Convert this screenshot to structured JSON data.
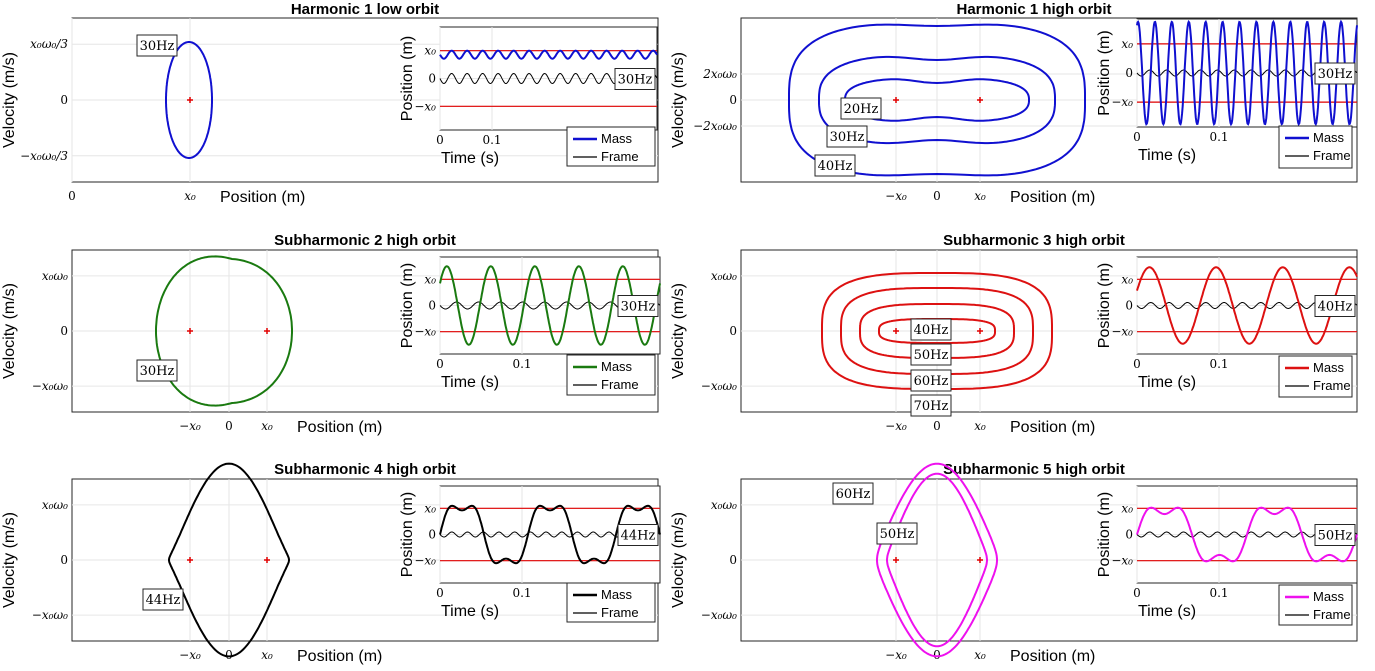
{
  "chart_data": [
    {
      "type": "line",
      "title": "Harmonic 1 low orbit",
      "phase": {
        "xlabel": "Position (m)",
        "ylabel": "Velocity (m/s)",
        "xticks": [
          "0",
          "x₀"
        ],
        "yticks": [
          "x₀ω₀/3",
          "0",
          "−x₀ω₀/3"
        ],
        "orbits": [
          {
            "label": "30Hz",
            "color": "#1010d0"
          }
        ]
      },
      "timeseries": {
        "xlabel": "Time (s)",
        "ylabel": "Position (m)",
        "xticks": [
          "0",
          "0.1"
        ],
        "yticks": [
          "x₀",
          "0",
          "−x₀"
        ],
        "freq_label": "30Hz",
        "series": [
          {
            "name": "Mass",
            "color": "#1010d0"
          },
          {
            "name": "Frame",
            "color": "#000000"
          }
        ]
      }
    },
    {
      "type": "line",
      "title": "Harmonic 1 high orbit",
      "phase": {
        "xlabel": "Position (m)",
        "ylabel": "Velocity (m/s)",
        "xticks": [
          "−x₀",
          "0",
          "x₀"
        ],
        "yticks": [
          "2x₀ω₀",
          "0",
          "−2x₀ω₀"
        ],
        "orbits": [
          {
            "label": "20Hz",
            "color": "#1010d0"
          },
          {
            "label": "30Hz",
            "color": "#1010d0"
          },
          {
            "label": "40Hz",
            "color": "#1010d0"
          }
        ]
      },
      "timeseries": {
        "xlabel": "Time (s)",
        "ylabel": "Position (m)",
        "xticks": [
          "0",
          "0.1"
        ],
        "yticks": [
          "x₀",
          "0",
          "−x₀"
        ],
        "freq_label": "30Hz",
        "series": [
          {
            "name": "Mass",
            "color": "#1010d0"
          },
          {
            "name": "Frame",
            "color": "#000000"
          }
        ]
      }
    },
    {
      "type": "line",
      "title": "Subharmonic 2 high orbit",
      "phase": {
        "xlabel": "Position (m)",
        "ylabel": "Velocity (m/s)",
        "xticks": [
          "−x₀",
          "0",
          "x₀"
        ],
        "yticks": [
          "x₀ω₀",
          "0",
          "−x₀ω₀"
        ],
        "orbits": [
          {
            "label": "30Hz",
            "color": "#1a7a10"
          }
        ]
      },
      "timeseries": {
        "xlabel": "Time (s)",
        "ylabel": "Position (m)",
        "xticks": [
          "0",
          "0.1"
        ],
        "yticks": [
          "x₀",
          "0",
          "−x₀"
        ],
        "freq_label": "30Hz",
        "series": [
          {
            "name": "Mass",
            "color": "#1a7a10"
          },
          {
            "name": "Frame",
            "color": "#000000"
          }
        ]
      }
    },
    {
      "type": "line",
      "title": "Subharmonic 3 high orbit",
      "phase": {
        "xlabel": "Position (m)",
        "ylabel": "Velocity (m/s)",
        "xticks": [
          "−x₀",
          "0",
          "x₀"
        ],
        "yticks": [
          "x₀ω₀",
          "0",
          "−x₀ω₀"
        ],
        "orbits": [
          {
            "label": "40Hz",
            "color": "#dd1111"
          },
          {
            "label": "50Hz",
            "color": "#dd1111"
          },
          {
            "label": "60Hz",
            "color": "#dd1111"
          },
          {
            "label": "70Hz",
            "color": "#dd1111"
          }
        ]
      },
      "timeseries": {
        "xlabel": "Time (s)",
        "ylabel": "Position (m)",
        "xticks": [
          "0",
          "0.1"
        ],
        "yticks": [
          "x₀",
          "0",
          "−x₀"
        ],
        "freq_label": "40Hz",
        "series": [
          {
            "name": "Mass",
            "color": "#dd1111"
          },
          {
            "name": "Frame",
            "color": "#000000"
          }
        ]
      }
    },
    {
      "type": "line",
      "title": "Subharmonic 4 high orbit",
      "phase": {
        "xlabel": "Position (m)",
        "ylabel": "Velocity (m/s)",
        "xticks": [
          "−x₀",
          "0",
          "x₀"
        ],
        "yticks": [
          "x₀ω₀",
          "0",
          "−x₀ω₀"
        ],
        "orbits": [
          {
            "label": "44Hz",
            "color": "#000000"
          }
        ]
      },
      "timeseries": {
        "xlabel": "Time (s)",
        "ylabel": "Position (m)",
        "xticks": [
          "0",
          "0.1"
        ],
        "yticks": [
          "x₀",
          "0",
          "−x₀"
        ],
        "freq_label": "44Hz",
        "series": [
          {
            "name": "Mass",
            "color": "#000000"
          },
          {
            "name": "Frame",
            "color": "#000000"
          }
        ]
      }
    },
    {
      "type": "line",
      "title": "Subharmonic 5 high orbit",
      "phase": {
        "xlabel": "Position (m)",
        "ylabel": "Velocity (m/s)",
        "xticks": [
          "−x₀",
          "0",
          "x₀"
        ],
        "yticks": [
          "x₀ω₀",
          "0",
          "−x₀ω₀"
        ],
        "orbits": [
          {
            "label": "60Hz",
            "color": "#ee11ee"
          },
          {
            "label": "50Hz",
            "color": "#ee11ee"
          }
        ]
      },
      "timeseries": {
        "xlabel": "Time (s)",
        "ylabel": "Position (m)",
        "xticks": [
          "0",
          "0.1"
        ],
        "yticks": [
          "x₀",
          "0",
          "−x₀"
        ],
        "freq_label": "50Hz",
        "series": [
          {
            "name": "Mass",
            "color": "#ee11ee"
          },
          {
            "name": "Frame",
            "color": "#000000"
          }
        ]
      }
    }
  ]
}
